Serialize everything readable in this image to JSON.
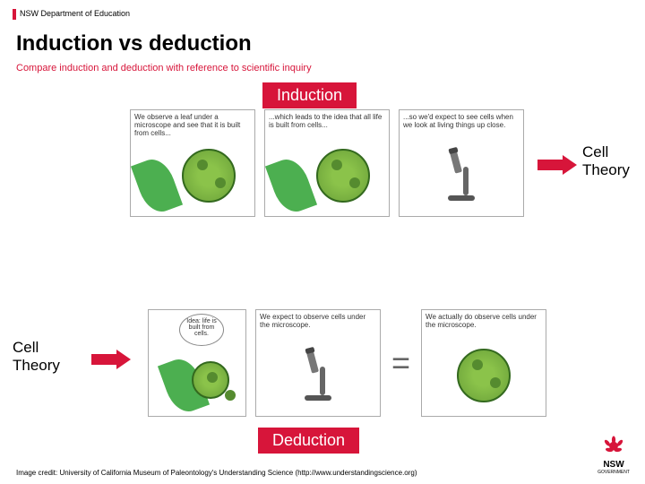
{
  "header": {
    "org": "NSW Department of Education"
  },
  "title": "Induction vs deduction",
  "subtitle": "Compare induction and deduction with reference to scientific inquiry",
  "labels": {
    "induction": "Induction",
    "deduction": "Deduction",
    "cell_theory": "Cell Theory"
  },
  "induction_panels": [
    {
      "caption": "We observe a leaf under a microscope and see that it is built from cells..."
    },
    {
      "caption": "...which leads to the idea that all life is built from cells..."
    },
    {
      "caption": "...so we'd expect to see cells when we look at living things up close."
    }
  ],
  "deduction_panels": [
    {
      "caption": "Idea: life is built from cells."
    },
    {
      "caption": "We expect to observe cells under the microscope."
    },
    {
      "caption": "We actually do observe cells under the microscope."
    }
  ],
  "credit": "Image credit: University of California Museum of Paleontology's Understanding Science (http://www.understandingscience.org)",
  "logo": {
    "name": "NSW",
    "sub": "GOVERNMENT"
  },
  "colors": {
    "accent": "#d7153a",
    "cell_green": "#8bc34a",
    "leaf_green": "#4caf50"
  }
}
